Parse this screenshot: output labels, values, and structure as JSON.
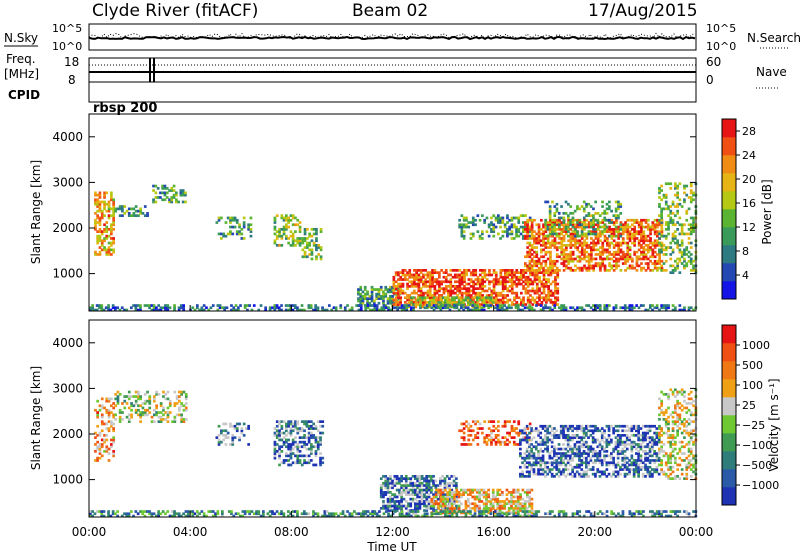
{
  "header": {
    "station": "Clyde River (fitACF)",
    "beam": "Beam 02",
    "date": "17/Aug/2015"
  },
  "top_panels": {
    "nsky_label": "N.Sky",
    "nsearch_label": "N.Search",
    "noise_ticks": [
      "10^5",
      "10^0"
    ],
    "freq_label_1": "Freq.",
    "freq_label_2": "[MHz]",
    "freq_ticks": [
      "18",
      "8"
    ],
    "nave_label": "Nave",
    "nave_ticks": [
      "60",
      "0"
    ],
    "cpid_label": "CPID",
    "cpid_value": "rbsp 200"
  },
  "chart_data": [
    {
      "type": "heatmap",
      "panel": "power",
      "ylabel": "Slant Range [km]",
      "xlabel": "",
      "ylim": [
        180,
        4500
      ],
      "yticks": [
        "1000",
        "2000",
        "3000",
        "4000"
      ],
      "xlim": [
        "00:00",
        "24:00"
      ],
      "colorbar": {
        "label": "Power [dB]",
        "ticks": [
          "4",
          "8",
          "12",
          "16",
          "20",
          "24",
          "28"
        ],
        "range": [
          0,
          30
        ],
        "colors": [
          "#1414e6",
          "#2348b4",
          "#2d7a82",
          "#3a9a5a",
          "#5ab432",
          "#b4c814",
          "#e6b414",
          "#f08c14",
          "#f05014",
          "#e61414"
        ]
      },
      "echo_regions": [
        {
          "t": [
            0.2,
            1.0
          ],
          "r": [
            1400,
            2800
          ],
          "level": 0.7,
          "density": 0.5
        },
        {
          "t": [
            1.0,
            2.3
          ],
          "r": [
            2250,
            2500
          ],
          "level": 0.35,
          "density": 0.4
        },
        {
          "t": [
            2.5,
            3.8
          ],
          "r": [
            2550,
            2950
          ],
          "level": 0.35,
          "density": 0.35
        },
        {
          "t": [
            5.0,
            6.4
          ],
          "r": [
            1750,
            2250
          ],
          "level": 0.35,
          "density": 0.3
        },
        {
          "t": [
            7.3,
            8.3
          ],
          "r": [
            1600,
            2300
          ],
          "level": 0.5,
          "density": 0.45
        },
        {
          "t": [
            8.4,
            9.2
          ],
          "r": [
            1300,
            2000
          ],
          "level": 0.45,
          "density": 0.4
        },
        {
          "t": [
            10.6,
            12.3
          ],
          "r": [
            280,
            700
          ],
          "level": 0.35,
          "density": 0.55
        },
        {
          "t": [
            12.0,
            18.5
          ],
          "r": [
            300,
            1100
          ],
          "level": 0.85,
          "density": 0.65
        },
        {
          "t": [
            12.6,
            16.0
          ],
          "r": [
            250,
            500
          ],
          "level": 0.55,
          "density": 0.6
        },
        {
          "t": [
            14.6,
            17.4
          ],
          "r": [
            1750,
            2300
          ],
          "level": 0.35,
          "density": 0.35
        },
        {
          "t": [
            17.2,
            22.6
          ],
          "r": [
            1050,
            2200
          ],
          "level": 0.8,
          "density": 0.6
        },
        {
          "t": [
            18.0,
            21.0
          ],
          "r": [
            1800,
            2600
          ],
          "level": 0.4,
          "density": 0.3
        },
        {
          "t": [
            22.5,
            24.0
          ],
          "r": [
            1000,
            3000
          ],
          "level": 0.45,
          "density": 0.35
        },
        {
          "t": [
            0.0,
            24.0
          ],
          "r": [
            180,
            320
          ],
          "level": 0.25,
          "density": 0.5
        }
      ]
    },
    {
      "type": "heatmap",
      "panel": "velocity",
      "ylabel": "Slant Range [km]",
      "xlabel": "Time UT",
      "ylim": [
        180,
        4500
      ],
      "yticks": [
        "1000",
        "2000",
        "3000",
        "4000"
      ],
      "xticks": [
        "00:00",
        "04:00",
        "08:00",
        "12:00",
        "16:00",
        "20:00",
        "00:00"
      ],
      "xlim": [
        "00:00",
        "24:00"
      ],
      "colorbar": {
        "label": "Velocity [m s⁻¹]",
        "ticks": [
          "1000",
          "500",
          "100",
          "25",
          "−25",
          "−100",
          "−500",
          "−1000"
        ],
        "range": [
          -1000,
          1000
        ],
        "colors": [
          "#1e32b4",
          "#2a5aa8",
          "#2f7d7a",
          "#3f9a52",
          "#6ec832",
          "#c8c8c8",
          "#f0a014",
          "#f07814",
          "#f05014",
          "#e61414"
        ]
      },
      "echo_regions": [
        {
          "t": [
            0.2,
            1.0
          ],
          "r": [
            1400,
            2800
          ],
          "level": 0.7,
          "density": 0.45
        },
        {
          "t": [
            1.0,
            3.8
          ],
          "r": [
            2250,
            2950
          ],
          "level": 0.5,
          "density": 0.35
        },
        {
          "t": [
            5.0,
            6.4
          ],
          "r": [
            1750,
            2250
          ],
          "level": 0.15,
          "density": 0.3
        },
        {
          "t": [
            7.3,
            9.2
          ],
          "r": [
            1300,
            2300
          ],
          "level": 0.15,
          "density": 0.45
        },
        {
          "t": [
            11.5,
            14.5
          ],
          "r": [
            300,
            1100
          ],
          "level": 0.15,
          "density": 0.65
        },
        {
          "t": [
            13.5,
            17.5
          ],
          "r": [
            250,
            800
          ],
          "level": 0.65,
          "density": 0.6
        },
        {
          "t": [
            14.6,
            17.4
          ],
          "r": [
            1750,
            2300
          ],
          "level": 0.8,
          "density": 0.35
        },
        {
          "t": [
            17.0,
            22.5
          ],
          "r": [
            1050,
            2200
          ],
          "level": 0.1,
          "density": 0.55
        },
        {
          "t": [
            22.5,
            24.0
          ],
          "r": [
            1000,
            3000
          ],
          "level": 0.55,
          "density": 0.35
        },
        {
          "t": [
            0.0,
            24.0
          ],
          "r": [
            180,
            320
          ],
          "level": 0.3,
          "density": 0.5
        }
      ]
    }
  ]
}
